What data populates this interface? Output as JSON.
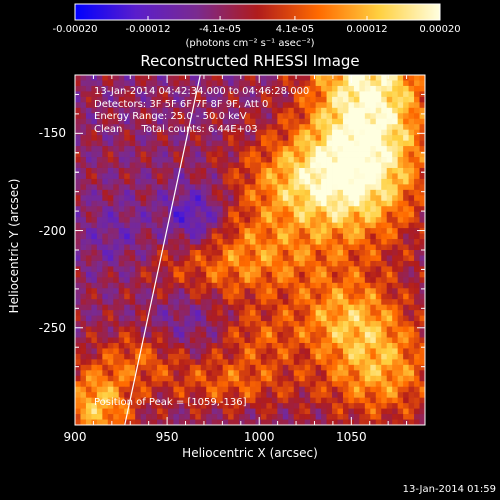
{
  "chart_data": {
    "type": "heatmap",
    "title": "Reconstructed RHESSI Image",
    "xlabel": "Heliocentric X (arcsec)",
    "ylabel": "Heliocentric Y (arcsec)",
    "xlim": [
      900,
      1090
    ],
    "ylim": [
      -300,
      -120
    ],
    "x_ticks": [
      "900",
      "950",
      "1000",
      "1050"
    ],
    "y_ticks": [
      "-150",
      "-200",
      "-250"
    ],
    "colorbar": {
      "title": "(photons cm⁻² s⁻¹ asec⁻²)",
      "range": [
        -0.0002,
        0.0002
      ],
      "tick_labels": [
        "-0.00020",
        "-0.00012",
        "-4.1e-05",
        "4.1e-05",
        "0.00012",
        "0.00020"
      ],
      "tick_values": [
        -0.0002,
        -0.00012,
        -4.1e-05,
        4.1e-05,
        0.00012,
        0.0002
      ],
      "colors": [
        "#0000ff",
        "#5a1ecc",
        "#7a2a90",
        "#b01c1c",
        "#ff6a00",
        "#ffd040",
        "#ffffe0"
      ]
    },
    "annotations": [
      "13-Jan-2014 04:42:34.000 to 04:46:28.000",
      "Detectors: 3F 5F 6F 7F 8F 9F, Att 0",
      "Energy Range: 25.0 - 50.0 keV",
      "Clean      Total counts: 6.44E+03"
    ],
    "peak_label": "Position of Peak = [1059,-136]",
    "peak": [
      1059,
      -136
    ],
    "limb_line": [
      [
        927,
        -300
      ],
      [
        968,
        -120
      ]
    ],
    "sources": [
      {
        "x": 1059,
        "y": -136,
        "sx": 22,
        "sy": 40,
        "amp": 0.00024
      },
      {
        "x": 1030,
        "y": -175,
        "sx": 28,
        "sy": 18,
        "amp": 0.00017
      },
      {
        "x": 990,
        "y": -215,
        "sx": 38,
        "sy": 16,
        "amp": 0.00012
      },
      {
        "x": 1048,
        "y": -245,
        "sx": 20,
        "sy": 14,
        "amp": 0.00012
      },
      {
        "x": 1065,
        "y": -272,
        "sx": 22,
        "sy": 18,
        "amp": 0.00014
      },
      {
        "x": 912,
        "y": -290,
        "sx": 14,
        "sy": 14,
        "amp": 0.00016
      },
      {
        "x": 935,
        "y": -265,
        "sx": 16,
        "sy": 10,
        "amp": 8e-05
      },
      {
        "x": 985,
        "y": -278,
        "sx": 26,
        "sy": 10,
        "amp": 9e-05
      },
      {
        "x": 1000,
        "y": -255,
        "sx": 16,
        "sy": 10,
        "amp": 7e-05
      },
      {
        "x": 965,
        "y": -195,
        "sx": 12,
        "sy": 12,
        "amp": -0.00012
      },
      {
        "x": 925,
        "y": -205,
        "sx": 16,
        "sy": 14,
        "amp": -6e-05
      },
      {
        "x": 960,
        "y": -245,
        "sx": 14,
        "sy": 12,
        "amp": -5e-05
      }
    ]
  },
  "footer": "13-Jan-2014 01:59"
}
